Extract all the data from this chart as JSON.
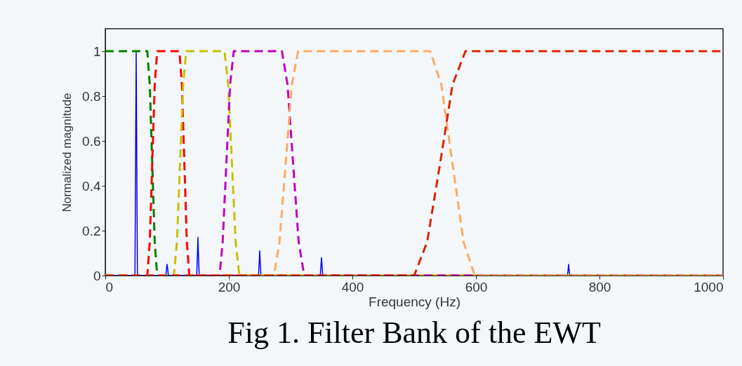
{
  "chart_data": {
    "type": "line",
    "title": "Fig 1. Filter Bank of the EWT",
    "xlabel": "Frequency (Hz)",
    "ylabel": "Normalized magnitude",
    "xlim": [
      0,
      1000
    ],
    "xticks": [
      0,
      200,
      400,
      600,
      800,
      1000
    ],
    "ylim": [
      0,
      1.1
    ],
    "yticks": [
      0,
      0.2,
      0.4,
      0.6,
      0.8,
      1
    ],
    "grid": false,
    "marker": "none",
    "series": [
      {
        "color": "#0000ff",
        "line_style": "solid",
        "x": [
          0,
          48,
          49,
          50,
          51,
          52,
          98,
          99,
          100,
          101,
          102,
          148,
          149,
          150,
          151,
          152,
          248,
          249,
          250,
          251,
          252,
          348,
          349,
          350,
          351,
          352,
          748,
          749,
          750,
          751,
          752,
          1000
        ],
        "values": [
          0,
          0,
          0.5,
          1,
          0.5,
          0,
          0,
          0.03,
          0.05,
          0.03,
          0,
          0,
          0.08,
          0.17,
          0.08,
          0,
          0,
          0.05,
          0.11,
          0.05,
          0,
          0,
          0.04,
          0.08,
          0.04,
          0,
          0,
          0.02,
          0.05,
          0.02,
          0,
          0
        ]
      },
      {
        "color": "#008000",
        "line_style": "dashed",
        "x": [
          0,
          68,
          72,
          76,
          80,
          84
        ],
        "values": [
          1,
          1,
          0.85,
          0.5,
          0.15,
          0
        ]
      },
      {
        "color": "#ff0000",
        "line_style": "dashed",
        "x": [
          0,
          68,
          72,
          76,
          80,
          84,
          120,
          124,
          128,
          132,
          136,
          1000
        ],
        "values": [
          0,
          0,
          0.15,
          0.5,
          0.85,
          1,
          1,
          0.85,
          0.5,
          0.15,
          0,
          0
        ]
      },
      {
        "color": "#c8c000",
        "line_style": "dashed",
        "x": [
          0,
          111,
          116,
          121,
          126,
          131,
          193,
          199,
          205,
          211,
          217,
          1000
        ],
        "values": [
          0,
          0,
          0.15,
          0.5,
          0.85,
          1,
          1,
          0.85,
          0.5,
          0.15,
          0,
          0
        ]
      },
      {
        "color": "#c000c0",
        "line_style": "dashed",
        "x": [
          0,
          185,
          190,
          196,
          202,
          208,
          286,
          295,
          304,
          313,
          322,
          1000
        ],
        "values": [
          0,
          0,
          0.15,
          0.5,
          0.85,
          1,
          1,
          0.85,
          0.5,
          0.15,
          0,
          0
        ]
      },
      {
        "color": "#ffaa60",
        "line_style": "dashed",
        "x": [
          0,
          273,
          282,
          292,
          302,
          312,
          526,
          544,
          562,
          580,
          598,
          1000
        ],
        "values": [
          0,
          0,
          0.15,
          0.5,
          0.85,
          1,
          1,
          0.85,
          0.5,
          0.15,
          0,
          0
        ]
      },
      {
        "color": "#dd2200",
        "line_style": "dashed",
        "x": [
          0,
          500,
          521,
          542,
          562,
          583,
          1000
        ],
        "values": [
          0,
          0,
          0.15,
          0.5,
          0.85,
          1,
          1
        ]
      }
    ]
  }
}
